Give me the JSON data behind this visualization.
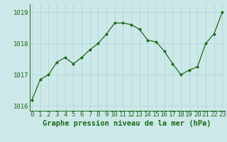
{
  "x": [
    0,
    1,
    2,
    3,
    4,
    5,
    6,
    7,
    8,
    9,
    10,
    11,
    12,
    13,
    14,
    15,
    16,
    17,
    18,
    19,
    20,
    21,
    22,
    23
  ],
  "y": [
    1016.2,
    1016.85,
    1017.0,
    1017.4,
    1017.55,
    1017.35,
    1017.55,
    1017.8,
    1018.0,
    1018.3,
    1018.65,
    1018.65,
    1018.6,
    1018.45,
    1018.1,
    1018.05,
    1017.75,
    1017.35,
    1017.0,
    1017.15,
    1017.25,
    1018.0,
    1018.3,
    1019.0
  ],
  "ylim": [
    1015.85,
    1019.25
  ],
  "yticks": [
    1016,
    1017,
    1018,
    1019
  ],
  "xticks": [
    0,
    1,
    2,
    3,
    4,
    5,
    6,
    7,
    8,
    9,
    10,
    11,
    12,
    13,
    14,
    15,
    16,
    17,
    18,
    19,
    20,
    21,
    22,
    23
  ],
  "line_color": "#1a6b1a",
  "marker_color": "#1a6b1a",
  "bg_color": "#cde8e8",
  "grid_color": "#b0d8d8",
  "xlabel": "Graphe pression niveau de la mer (hPa)",
  "xlabel_color": "#1a6b1a",
  "tick_label_color": "#1a6b1a",
  "tick_label_fontsize": 6.5,
  "xlabel_fontsize": 7.5
}
